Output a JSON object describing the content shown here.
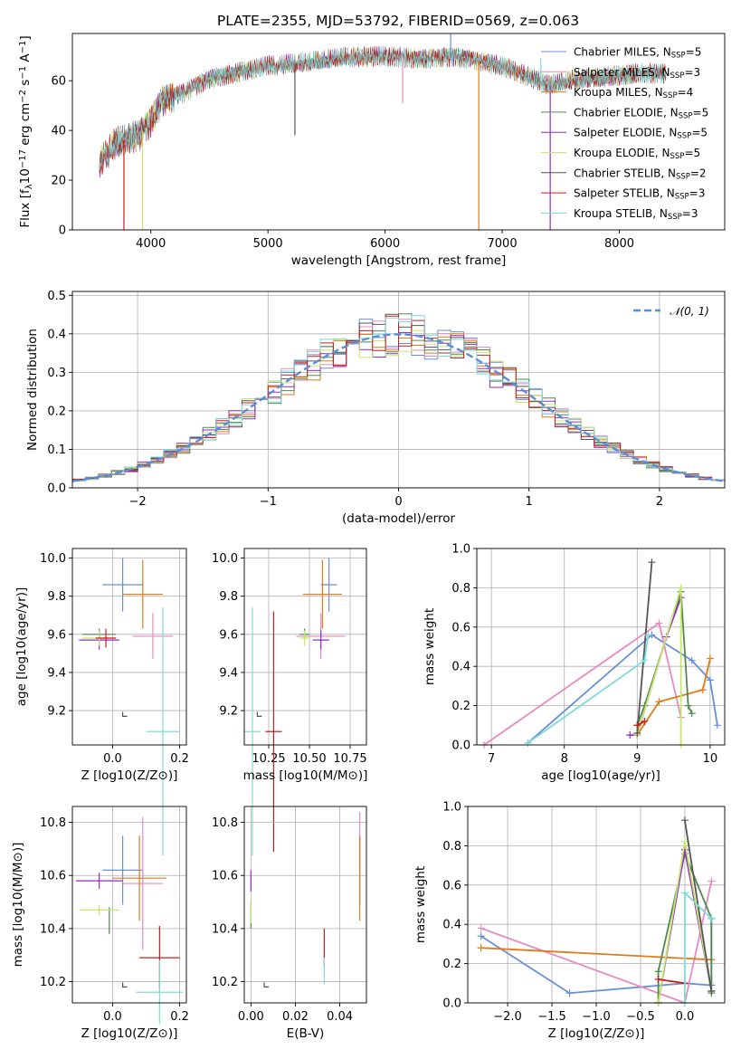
{
  "figure_title": "PLATE=2355, MJD=53792, FIBERID=0569, z=0.063",
  "models": [
    {
      "name": "Chabrier MILES",
      "nssp": "5",
      "color": "#6a8fd8"
    },
    {
      "name": "Salpeter MILES",
      "nssp": "3",
      "color": "#e58ac2"
    },
    {
      "name": "Kroupa MILES",
      "nssp": "4",
      "color": "#e07b18"
    },
    {
      "name": "Chabrier ELODIE",
      "nssp": "5",
      "color": "#4f8a4f"
    },
    {
      "name": "Salpeter ELODIE",
      "nssp": "5",
      "color": "#8e2ec4"
    },
    {
      "name": "Kroupa ELODIE",
      "nssp": "5",
      "color": "#c6e66e"
    },
    {
      "name": "Chabrier STELIB",
      "nssp": "2",
      "color": "#555555"
    },
    {
      "name": "Salpeter STELIB",
      "nssp": "3",
      "color": "#c41e1e"
    },
    {
      "name": "Kroupa STELIB",
      "nssp": "3",
      "color": "#7fdada"
    }
  ],
  "legend_nssp_prefix": "N",
  "legend_nssp_sub": "SSP",
  "chart_data": [
    {
      "id": "spectrum",
      "type": "line",
      "xlabel": "wavelength [Angstrom, rest frame]",
      "ylabel": "Flux [f",
      "ylabel_parts": {
        "a": "Flux [f",
        "b": "λ",
        "c": "10",
        "d": "−17",
        "e": " erg cm",
        "f": "−2",
        "g": " s",
        "h": "−1",
        "i": " A",
        "j": "−1",
        "k": "]"
      },
      "xlim": [
        3330,
        8900
      ],
      "ylim": [
        0,
        79
      ],
      "xticks": [
        4000,
        5000,
        6000,
        7000,
        8000
      ],
      "yticks": [
        0,
        20,
        40,
        60
      ],
      "continuum": {
        "x": [
          3560,
          3700,
          3900,
          4000,
          4100,
          4300,
          4500,
          4700,
          5000,
          5300,
          5600,
          6000,
          6300,
          6600,
          7000,
          7200,
          7400,
          7600,
          8000,
          8200,
          8400
        ],
        "y": [
          27,
          35,
          38,
          44,
          52,
          56,
          61,
          63,
          66,
          67,
          69,
          70,
          69,
          70,
          66,
          62,
          58,
          60,
          62,
          63,
          63
        ]
      },
      "spikes": [
        {
          "x": 3930,
          "y": 0
        },
        {
          "x": 3770,
          "y": 0
        },
        {
          "x": 6560,
          "y": 79
        },
        {
          "x": 6800,
          "y": 0
        },
        {
          "x": 7410,
          "y": 0
        },
        {
          "x": 5230,
          "y": 38
        },
        {
          "x": 7330,
          "y": 69
        },
        {
          "x": 6150,
          "y": 51
        }
      ]
    },
    {
      "id": "residual_hist",
      "type": "bar",
      "xlabel": "(data-model)/error",
      "ylabel": "Normed distribution",
      "xlim": [
        -2.5,
        2.5
      ],
      "ylim": [
        0,
        0.51
      ],
      "xticks": [
        -2,
        -1,
        0,
        1,
        2
      ],
      "yticks": [
        0.0,
        0.1,
        0.2,
        0.3,
        0.4,
        0.5
      ],
      "ref_label": "𝒩(0, 1)",
      "bin_width": 0.1
    },
    {
      "id": "age_vs_Z",
      "type": "scatter",
      "xlabel": "Z [log10(Z/Z⊙)]",
      "ylabel": "age  [log10(age/yr)]",
      "xlim": [
        -0.12,
        0.22
      ],
      "ylim": [
        9.02,
        10.05
      ],
      "xticks": [
        0.0,
        0.2
      ],
      "yticks": [
        9.2,
        9.4,
        9.6,
        9.8,
        10.0
      ],
      "points": [
        {
          "m": 0,
          "x": 0.03,
          "y": 9.86,
          "xe": 0.06,
          "ye": 0.14
        },
        {
          "m": 1,
          "x": 0.12,
          "y": 9.59,
          "xe": 0.06,
          "ye": 0.12
        },
        {
          "m": 2,
          "x": 0.09,
          "y": 9.81,
          "xe": 0.06,
          "ye": 0.18
        },
        {
          "m": 3,
          "x": -0.04,
          "y": 9.6,
          "xe": 0.05,
          "ye": 0.03
        },
        {
          "m": 4,
          "x": -0.04,
          "y": 9.57,
          "xe": 0.06,
          "ye": 0.05
        },
        {
          "m": 5,
          "x": -0.04,
          "y": 9.58,
          "xe": 0.05,
          "ye": 0.04
        },
        {
          "m": 6,
          "x": 0.03,
          "y": 9.17,
          "xe": 0.0,
          "ye": 0.0
        },
        {
          "m": 7,
          "x": -0.02,
          "y": 9.58,
          "xe": 0.03,
          "ye": 0.05
        },
        {
          "m": 8,
          "x": 0.15,
          "y": 9.09,
          "xe": 0.05,
          "ye": 0.65
        }
      ]
    },
    {
      "id": "age_vs_mass",
      "type": "scatter",
      "xlabel": "mass [log10(M/M⊙)]",
      "ylabel": "",
      "xlim": [
        10.1,
        10.85
      ],
      "ylim": [
        9.02,
        10.05
      ],
      "xticks": [
        10.25,
        10.5,
        10.75
      ],
      "yticks": [
        9.2,
        9.4,
        9.6,
        9.8,
        10.0
      ],
      "points": [
        {
          "m": 0,
          "x": 10.62,
          "y": 9.86,
          "xe": 0.05,
          "ye": 0.14
        },
        {
          "m": 1,
          "x": 10.57,
          "y": 9.59,
          "xe": 0.15,
          "ye": 0.12
        },
        {
          "m": 2,
          "x": 10.58,
          "y": 9.81,
          "xe": 0.12,
          "ye": 0.18
        },
        {
          "m": 3,
          "x": 10.47,
          "y": 9.6,
          "xe": 0.03,
          "ye": 0.03
        },
        {
          "m": 4,
          "x": 10.57,
          "y": 9.57,
          "xe": 0.05,
          "ye": 0.05
        },
        {
          "m": 5,
          "x": 10.47,
          "y": 9.58,
          "xe": 0.03,
          "ye": 0.04
        },
        {
          "m": 6,
          "x": 10.18,
          "y": 9.17,
          "xe": 0.0,
          "ye": 0.0
        },
        {
          "m": 7,
          "x": 10.28,
          "y": 9.09,
          "xe": 0.05,
          "ye": 0.63
        },
        {
          "m": 8,
          "x": 10.15,
          "y": 9.09,
          "xe": 0.05,
          "ye": 0.65
        }
      ]
    },
    {
      "id": "massweight_vs_age",
      "type": "line",
      "xlabel": "age  [log10(age/yr)]",
      "ylabel": "mass weight",
      "xlim": [
        6.8,
        10.2
      ],
      "ylim": [
        0,
        1
      ],
      "xticks": [
        7,
        8,
        9,
        10
      ],
      "yticks": [
        0.0,
        0.2,
        0.4,
        0.6,
        0.8,
        1.0
      ],
      "series": [
        {
          "m": 0,
          "x": [
            7.5,
            9.2,
            9.75,
            10.0,
            10.1
          ],
          "y": [
            0.01,
            0.56,
            0.43,
            0.33,
            0.1
          ]
        },
        {
          "m": 1,
          "x": [
            6.9,
            9.3,
            9.6
          ],
          "y": [
            0.0,
            0.62,
            0.14
          ]
        },
        {
          "m": 2,
          "x": [
            9.0,
            9.3,
            9.9,
            10.0
          ],
          "y": [
            0.05,
            0.22,
            0.28,
            0.44
          ]
        },
        {
          "m": 3,
          "x": [
            9.0,
            9.1,
            9.6,
            9.7,
            9.75
          ],
          "y": [
            0.1,
            0.2,
            0.78,
            0.2,
            0.16
          ]
        },
        {
          "m": 4,
          "x": [
            8.9,
            9.0,
            9.4,
            9.6
          ],
          "y": [
            0.05,
            0.05,
            0.55,
            0.75
          ]
        },
        {
          "m": 5,
          "x": [
            9.0,
            9.6,
            9.6
          ],
          "y": [
            0.05,
            0.8,
            0.0
          ]
        },
        {
          "m": 6,
          "x": [
            9.0,
            9.2
          ],
          "y": [
            0.06,
            0.93
          ]
        },
        {
          "m": 7,
          "x": [
            9.0,
            9.1
          ],
          "y": [
            0.1,
            0.12
          ]
        },
        {
          "m": 8,
          "x": [
            7.5,
            9.1,
            9.15
          ],
          "y": [
            0.01,
            0.43,
            0.56
          ]
        }
      ]
    },
    {
      "id": "mass_vs_Z",
      "type": "scatter",
      "xlabel": "Z [log10(Z/Z⊙)]",
      "ylabel": "mass [log10(M/M⊙)]",
      "xlim": [
        -0.12,
        0.22
      ],
      "ylim": [
        10.12,
        10.86
      ],
      "xticks": [
        0.0,
        0.2
      ],
      "yticks": [
        10.2,
        10.4,
        10.6,
        10.8
      ],
      "points": [
        {
          "m": 0,
          "x": 0.03,
          "y": 10.62,
          "xe": 0.06,
          "ye": 0.13
        },
        {
          "m": 1,
          "x": 0.09,
          "y": 10.57,
          "xe": 0.06,
          "ye": 0.25
        },
        {
          "m": 2,
          "x": 0.08,
          "y": 10.59,
          "xe": 0.08,
          "ye": 0.16
        },
        {
          "m": 3,
          "x": -0.01,
          "y": 10.43,
          "xe": 0.0,
          "ye": 0.05
        },
        {
          "m": 4,
          "x": -0.04,
          "y": 10.58,
          "xe": 0.07,
          "ye": 0.03
        },
        {
          "m": 5,
          "x": -0.04,
          "y": 10.47,
          "xe": 0.06,
          "ye": 0.02
        },
        {
          "m": 6,
          "x": 0.03,
          "y": 10.18,
          "xe": 0.0,
          "ye": 0.0
        },
        {
          "m": 7,
          "x": 0.14,
          "y": 10.29,
          "xe": 0.06,
          "ye": 0.12
        },
        {
          "m": 8,
          "x": 0.14,
          "y": 10.16,
          "xe": 0.07,
          "ye": 0.12
        }
      ]
    },
    {
      "id": "mass_vs_ebv",
      "type": "scatter",
      "xlabel": "E(B-V)",
      "ylabel": "",
      "xlim": [
        -0.003,
        0.052
      ],
      "ylim": [
        10.12,
        10.86
      ],
      "xticks": [
        0.0,
        0.02,
        0.04
      ],
      "yticks": [
        10.2,
        10.4,
        10.6,
        10.8
      ],
      "points": [
        {
          "m": 0,
          "x": 0.049,
          "y": 10.62,
          "xe": 0,
          "ye": 0.13
        },
        {
          "m": 1,
          "x": 0.049,
          "y": 10.72,
          "xe": 0,
          "ye": 0.12
        },
        {
          "m": 2,
          "x": 0.049,
          "y": 10.59,
          "xe": 0,
          "ye": 0.16
        },
        {
          "m": 3,
          "x": 0.0,
          "y": 10.45,
          "xe": 0,
          "ye": 0.05
        },
        {
          "m": 4,
          "x": 0.0,
          "y": 10.58,
          "xe": 0,
          "ye": 0.04
        },
        {
          "m": 5,
          "x": 0.0,
          "y": 10.46,
          "xe": 0,
          "ye": 0.04
        },
        {
          "m": 6,
          "x": 0.006,
          "y": 10.18,
          "xe": 0,
          "ye": 0.0
        },
        {
          "m": 7,
          "x": 0.033,
          "y": 10.33,
          "xe": 0,
          "ye": 0.07
        },
        {
          "m": 8,
          "x": 0.033,
          "y": 10.24,
          "xe": 0,
          "ye": 0.05
        }
      ]
    },
    {
      "id": "massweight_vs_Z",
      "type": "line",
      "xlabel": "Z [log10(Z/Z⊙)]",
      "ylabel": "mass weight",
      "xlim": [
        -2.45,
        0.45
      ],
      "ylim": [
        0,
        1
      ],
      "xticks": [
        -2.0,
        -1.5,
        -1.0,
        -0.5,
        0.0
      ],
      "yticks": [
        0.0,
        0.2,
        0.4,
        0.6,
        0.8,
        1.0
      ],
      "series": [
        {
          "m": 0,
          "x": [
            -2.3,
            -1.3,
            0.0,
            0.3,
            0.3
          ],
          "y": [
            0.34,
            0.05,
            0.1,
            0.09,
            0.43
          ]
        },
        {
          "m": 1,
          "x": [
            -2.3,
            0.0,
            0.3
          ],
          "y": [
            0.38,
            0.0,
            0.62
          ]
        },
        {
          "m": 2,
          "x": [
            -2.3,
            0.3
          ],
          "y": [
            0.28,
            0.22
          ]
        },
        {
          "m": 3,
          "x": [
            -0.3,
            -0.3,
            0.0,
            0.3,
            0.3
          ],
          "y": [
            0.0,
            0.16,
            0.76,
            0.43,
            0.05
          ]
        },
        {
          "m": 4,
          "x": [
            -0.3,
            0.0,
            0.3
          ],
          "y": [
            0.0,
            0.78,
            0.06
          ]
        },
        {
          "m": 5,
          "x": [
            -0.3,
            0.0,
            0.3
          ],
          "y": [
            0.0,
            0.82,
            0.06
          ]
        },
        {
          "m": 6,
          "x": [
            0.0,
            0.3
          ],
          "y": [
            0.93,
            0.06
          ]
        },
        {
          "m": 7,
          "x": [
            -0.3,
            0.0
          ],
          "y": [
            0.12,
            0.1
          ]
        },
        {
          "m": 8,
          "x": [
            0.0,
            0.0,
            0.3
          ],
          "y": [
            0.0,
            0.56,
            0.43
          ]
        }
      ]
    }
  ]
}
